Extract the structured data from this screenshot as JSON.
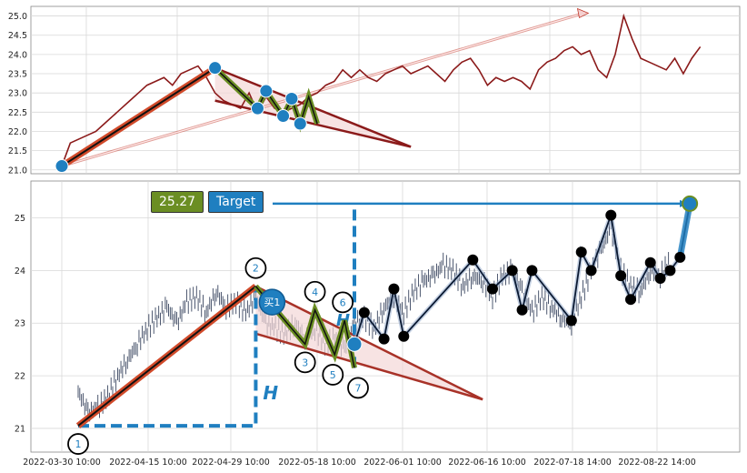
{
  "chart_data": [
    {
      "panel": "top",
      "type": "line",
      "y_ticks": [
        "21.0",
        "21.5",
        "22.0",
        "22.5",
        "23.0",
        "23.5",
        "24.0",
        "24.5",
        "25.0"
      ],
      "ylim": [
        20.9,
        25.25
      ],
      "grid": true,
      "series": [
        {
          "color": "#8b1a1a",
          "x": [
            0,
            2,
            4,
            6,
            8,
            10,
            12,
            14,
            16,
            18,
            20,
            22,
            24,
            26,
            28,
            30,
            32,
            34,
            36,
            38,
            40,
            42,
            44,
            46,
            48,
            50,
            52,
            54,
            56,
            58,
            60,
            62,
            64,
            66,
            68,
            70,
            72,
            74,
            76,
            78,
            80,
            82,
            84,
            86,
            88,
            90,
            92,
            94,
            96,
            98,
            100,
            102,
            104,
            106,
            108,
            110,
            112,
            114,
            116,
            118,
            120,
            122,
            124,
            126,
            128,
            130,
            132,
            134,
            136,
            138,
            140,
            142,
            144,
            146,
            148,
            150
          ],
          "y": [
            21.1,
            21.7,
            21.8,
            21.9,
            22.0,
            22.2,
            22.4,
            22.6,
            22.8,
            23.0,
            23.2,
            23.3,
            23.4,
            23.2,
            23.5,
            23.6,
            23.7,
            23.4,
            23.0,
            22.8,
            22.7,
            22.6,
            23.0,
            22.5,
            22.9,
            22.6,
            22.5,
            22.6,
            22.7,
            22.9,
            23.0,
            23.2,
            23.3,
            23.6,
            23.4,
            23.6,
            23.4,
            23.3,
            23.5,
            23.6,
            23.7,
            23.5,
            23.6,
            23.7,
            23.5,
            23.3,
            23.6,
            23.8,
            23.9,
            23.6,
            23.2,
            23.4,
            23.3,
            23.4,
            23.3,
            23.1,
            23.6,
            23.8,
            23.9,
            24.1,
            24.2,
            24.0,
            24.1,
            23.6,
            23.4,
            24.0,
            25.0,
            24.4,
            23.9,
            23.8,
            23.7,
            23.6,
            23.9,
            23.5,
            23.9,
            24.2
          ]
        }
      ],
      "annotations": {
        "up_line": {
          "x": [
            0,
            36
          ],
          "y": [
            21.1,
            23.65
          ]
        },
        "triangle": {
          "x": [
            36,
            36,
            82
          ],
          "y": [
            23.65,
            22.8,
            21.6
          ]
        },
        "zigzag": {
          "x": [
            36,
            46,
            48,
            52,
            54,
            56,
            58,
            60
          ],
          "y": [
            23.65,
            22.6,
            23.05,
            22.4,
            22.85,
            22.2,
            22.9,
            22.2
          ]
        },
        "points": {
          "x": [
            0,
            36,
            46,
            48,
            52,
            54,
            56
          ],
          "y": [
            21.1,
            23.65,
            22.6,
            23.05,
            22.4,
            22.85,
            22.2
          ]
        },
        "target_arrow": {
          "x": [
            0,
            122
          ],
          "y": [
            21.1,
            25.05
          ]
        }
      }
    },
    {
      "panel": "bottom",
      "type": "line",
      "y_ticks": [
        "21",
        "22",
        "23",
        "24",
        "25"
      ],
      "ylim": [
        20.55,
        25.7
      ],
      "grid": true,
      "x_ticks": [
        "2022-03-30 10:00",
        "2022-04-15 10:00",
        "2022-04-29 10:00",
        "2022-05-18 10:00",
        "2022-06-01 10:00",
        "2022-06-16 10:00",
        "2022-07-18 14:00",
        "2022-08-22 14:00"
      ],
      "labels": {
        "price": "25.27",
        "target": "Target",
        "buy": "买1",
        "H": "H",
        "H_small": "H"
      },
      "wave_numbers": [
        "1",
        "2",
        "3",
        "4",
        "5",
        "6",
        "7"
      ],
      "wave_points": {
        "x": [
          0,
          36,
          46,
          48,
          52,
          54,
          56
        ],
        "y": [
          21.05,
          23.7,
          22.6,
          23.25,
          22.4,
          23.05,
          22.15
        ]
      },
      "up_line": {
        "x": [
          0,
          36
        ],
        "y": [
          21.05,
          23.7
        ]
      },
      "triangle": {
        "x": [
          36,
          36,
          82
        ],
        "y": [
          23.7,
          22.8,
          21.55
        ]
      },
      "zigzag": {
        "x": [
          36,
          46,
          48,
          52,
          54,
          56
        ],
        "y": [
          23.7,
          22.6,
          23.25,
          22.4,
          23.05,
          22.15
        ]
      },
      "h_bracket": {
        "x": [
          0,
          36,
          36
        ],
        "y": [
          21.05,
          21.05,
          23.7
        ]
      },
      "h_small": {
        "x": [
          56,
          56
        ],
        "y": [
          22.15,
          25.27
        ]
      },
      "target_arrow": {
        "x": [
          46,
          126
        ],
        "y": [
          25.27,
          25.27
        ]
      },
      "path_points": {
        "x": [
          56,
          58,
          62,
          64,
          66,
          80,
          84,
          88,
          90,
          92,
          100,
          102,
          104,
          108,
          110,
          112,
          116,
          118,
          120,
          122,
          124
        ],
        "y": [
          22.6,
          23.2,
          22.7,
          23.65,
          22.75,
          24.2,
          23.65,
          24.0,
          23.25,
          24.0,
          23.05,
          24.35,
          24.0,
          25.05,
          23.9,
          23.45,
          24.15,
          23.85,
          24.0,
          24.25,
          25.27
        ]
      },
      "price_bars": {
        "x": [
          0,
          2,
          4,
          6,
          8,
          10,
          12,
          14,
          16,
          18,
          20,
          22,
          24,
          26,
          28,
          30,
          32,
          34,
          36,
          38,
          40,
          42,
          44,
          46,
          48,
          50,
          52,
          54,
          56,
          58,
          60,
          62,
          64,
          66,
          68,
          70,
          72,
          74,
          76,
          78,
          80,
          82,
          84,
          86,
          88,
          90,
          92,
          94,
          96,
          98,
          100,
          102,
          104,
          106,
          108,
          110,
          112,
          114,
          116,
          118,
          120
        ],
        "y": [
          21.7,
          21.3,
          21.4,
          21.6,
          22.0,
          22.3,
          22.6,
          22.9,
          23.1,
          23.3,
          23.0,
          23.4,
          23.5,
          23.2,
          23.6,
          23.3,
          23.4,
          23.2,
          23.5,
          23.0,
          22.9,
          22.8,
          23.0,
          22.7,
          22.9,
          22.6,
          22.7,
          22.5,
          23.0,
          23.1,
          22.9,
          23.3,
          23.5,
          23.2,
          23.6,
          23.8,
          23.9,
          24.1,
          24.0,
          23.7,
          23.9,
          23.8,
          23.5,
          23.9,
          24.0,
          23.6,
          23.2,
          23.5,
          23.3,
          23.1,
          23.0,
          23.5,
          24.0,
          24.4,
          24.8,
          24.0,
          23.7,
          23.6,
          24.0,
          23.9,
          24.2
        ]
      }
    }
  ],
  "colors": {
    "red": "#b03020",
    "dark_red": "#8b1a1a",
    "blue": "#1f7fc0",
    "green": "#6b8e23",
    "pink": "#f4d7d7",
    "grid": "#d8d8d8",
    "price": "#3a4660"
  }
}
